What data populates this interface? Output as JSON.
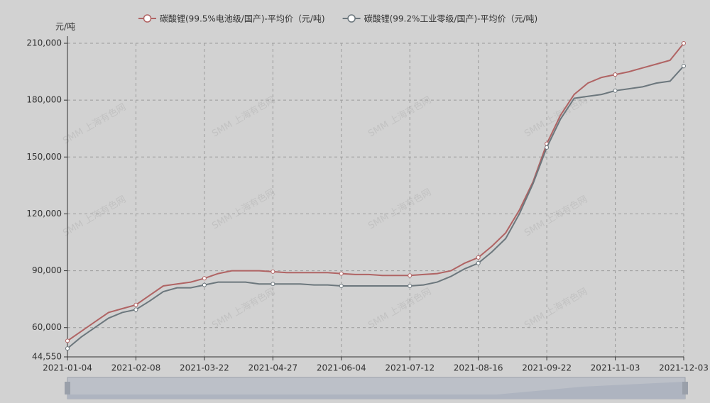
{
  "chart_data": {
    "type": "line",
    "legend_position": "top",
    "y_axis_label": "元/吨",
    "watermark": "SMM 上海有色网",
    "categories": [
      "2021-01-04",
      null,
      null,
      null,
      null,
      "2021-02-08",
      null,
      null,
      null,
      null,
      "2021-03-22",
      null,
      null,
      null,
      null,
      "2021-04-27",
      null,
      null,
      null,
      null,
      "2021-06-04",
      null,
      null,
      null,
      null,
      "2021-07-12",
      null,
      null,
      null,
      null,
      "2021-08-16",
      null,
      null,
      null,
      null,
      "2021-09-22",
      null,
      null,
      null,
      null,
      "2021-11-03",
      null,
      null,
      null,
      null,
      "2021-12-03"
    ],
    "series": [
      {
        "name": "碳酸锂(99.5%电池级/国产)-平均价（元/吨)",
        "color": "#b06464",
        "values": [
          53000,
          58000,
          63000,
          68000,
          70000,
          72000,
          77000,
          82000,
          83000,
          84000,
          86000,
          88500,
          90000,
          90000,
          90000,
          89500,
          89000,
          89000,
          89000,
          89000,
          88500,
          88000,
          88000,
          87500,
          87500,
          87500,
          88000,
          88500,
          90000,
          94000,
          97000,
          103000,
          110000,
          122000,
          137000,
          157000,
          172000,
          183000,
          189000,
          192000,
          193500,
          195000,
          197000,
          199000,
          201000,
          210000
        ]
      },
      {
        "name": "碳酸锂(99.2%工业零级/国产)-平均价（元/吨)",
        "color": "#6c777d",
        "values": [
          49000,
          55000,
          60000,
          65000,
          68000,
          69500,
          74000,
          79000,
          81000,
          81000,
          82500,
          84000,
          84000,
          84000,
          83000,
          83000,
          83000,
          83000,
          82500,
          82500,
          82000,
          82000,
          82000,
          82000,
          82000,
          82000,
          82500,
          84000,
          87000,
          91000,
          94000,
          100000,
          107000,
          120000,
          136000,
          155000,
          170000,
          181000,
          182000,
          183000,
          185000,
          186000,
          187000,
          189000,
          190000,
          198000
        ]
      }
    ],
    "ylim": [
      44550,
      210000
    ],
    "yticks": [
      {
        "value": 44550,
        "label": "44,550"
      },
      {
        "value": 60000,
        "label": "60,000"
      },
      {
        "value": 90000,
        "label": "90,000"
      },
      {
        "value": 120000,
        "label": "120,000"
      },
      {
        "value": 150000,
        "label": "150,000"
      },
      {
        "value": 180000,
        "label": "180,000"
      },
      {
        "value": 210000,
        "label": "210,000"
      }
    ],
    "grid": true
  }
}
